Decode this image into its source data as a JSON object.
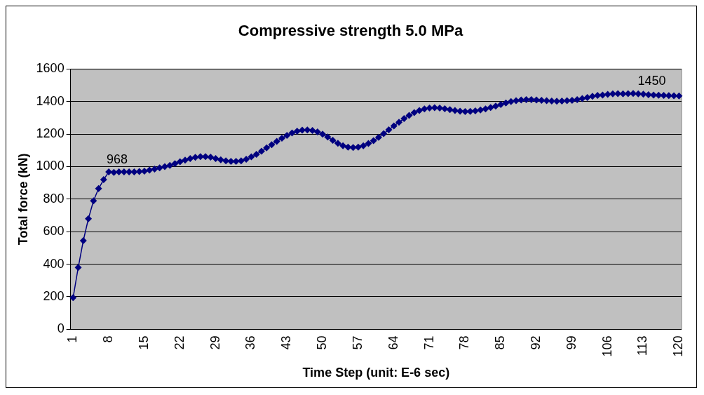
{
  "chart_data": {
    "type": "line",
    "title": "Compressive strength 5.0 MPa",
    "xlabel": "Time Step (unit: E-6 sec)",
    "ylabel": "Total force (kN)",
    "categories": [
      "1",
      null,
      null,
      null,
      null,
      null,
      null,
      "8",
      null,
      null,
      null,
      null,
      null,
      null,
      "15",
      null,
      null,
      null,
      null,
      null,
      null,
      "22",
      null,
      null,
      null,
      null,
      null,
      null,
      "29",
      null,
      null,
      null,
      null,
      null,
      null,
      "36",
      null,
      null,
      null,
      null,
      null,
      null,
      "43",
      null,
      null,
      null,
      null,
      null,
      null,
      "50",
      null,
      null,
      null,
      null,
      null,
      null,
      "57",
      null,
      null,
      null,
      null,
      null,
      null,
      "64",
      null,
      null,
      null,
      null,
      null,
      null,
      "71",
      null,
      null,
      null,
      null,
      null,
      null,
      "78",
      null,
      null,
      null,
      null,
      null,
      null,
      "85",
      null,
      null,
      null,
      null,
      null,
      null,
      "92",
      null,
      null,
      null,
      null,
      null,
      null,
      "99",
      null,
      null,
      null,
      null,
      null,
      null,
      "106",
      null,
      null,
      null,
      null,
      null,
      null,
      "113",
      null,
      null,
      null,
      null,
      null,
      null,
      "120"
    ],
    "series": [
      {
        "color": "#000080",
        "values": [
          195,
          380,
          545,
          680,
          790,
          865,
          920,
          968,
          965,
          968,
          968,
          968,
          968,
          970,
          972,
          978,
          985,
          992,
          1000,
          1008,
          1018,
          1030,
          1040,
          1050,
          1057,
          1062,
          1062,
          1058,
          1050,
          1042,
          1036,
          1032,
          1032,
          1036,
          1045,
          1060,
          1075,
          1095,
          1115,
          1135,
          1155,
          1175,
          1192,
          1207,
          1218,
          1224,
          1225,
          1222,
          1214,
          1200,
          1182,
          1162,
          1143,
          1128,
          1120,
          1118,
          1120,
          1128,
          1142,
          1160,
          1180,
          1203,
          1227,
          1250,
          1273,
          1295,
          1315,
          1332,
          1345,
          1355,
          1360,
          1362,
          1360,
          1356,
          1350,
          1345,
          1341,
          1339,
          1340,
          1343,
          1348,
          1355,
          1363,
          1372,
          1382,
          1392,
          1400,
          1406,
          1410,
          1412,
          1412,
          1410,
          1408,
          1405,
          1403,
          1402,
          1403,
          1405,
          1408,
          1412,
          1418,
          1425,
          1432,
          1438,
          1440,
          1444,
          1447,
          1449,
          1448,
          1449,
          1450,
          1448,
          1445,
          1442,
          1440,
          1439,
          1438,
          1437,
          1436,
          1435
        ]
      }
    ],
    "ylim": [
      0,
      1600
    ],
    "yticks": [
      0,
      200,
      400,
      600,
      800,
      1000,
      1200,
      1400,
      1600
    ],
    "grid": "y",
    "legend": false,
    "marker": "diamond",
    "line_style": "solid",
    "annotations": [
      {
        "text": "968",
        "x": "8",
        "y": 968
      },
      {
        "text": "1450",
        "x": "113",
        "y": 1450
      }
    ]
  }
}
